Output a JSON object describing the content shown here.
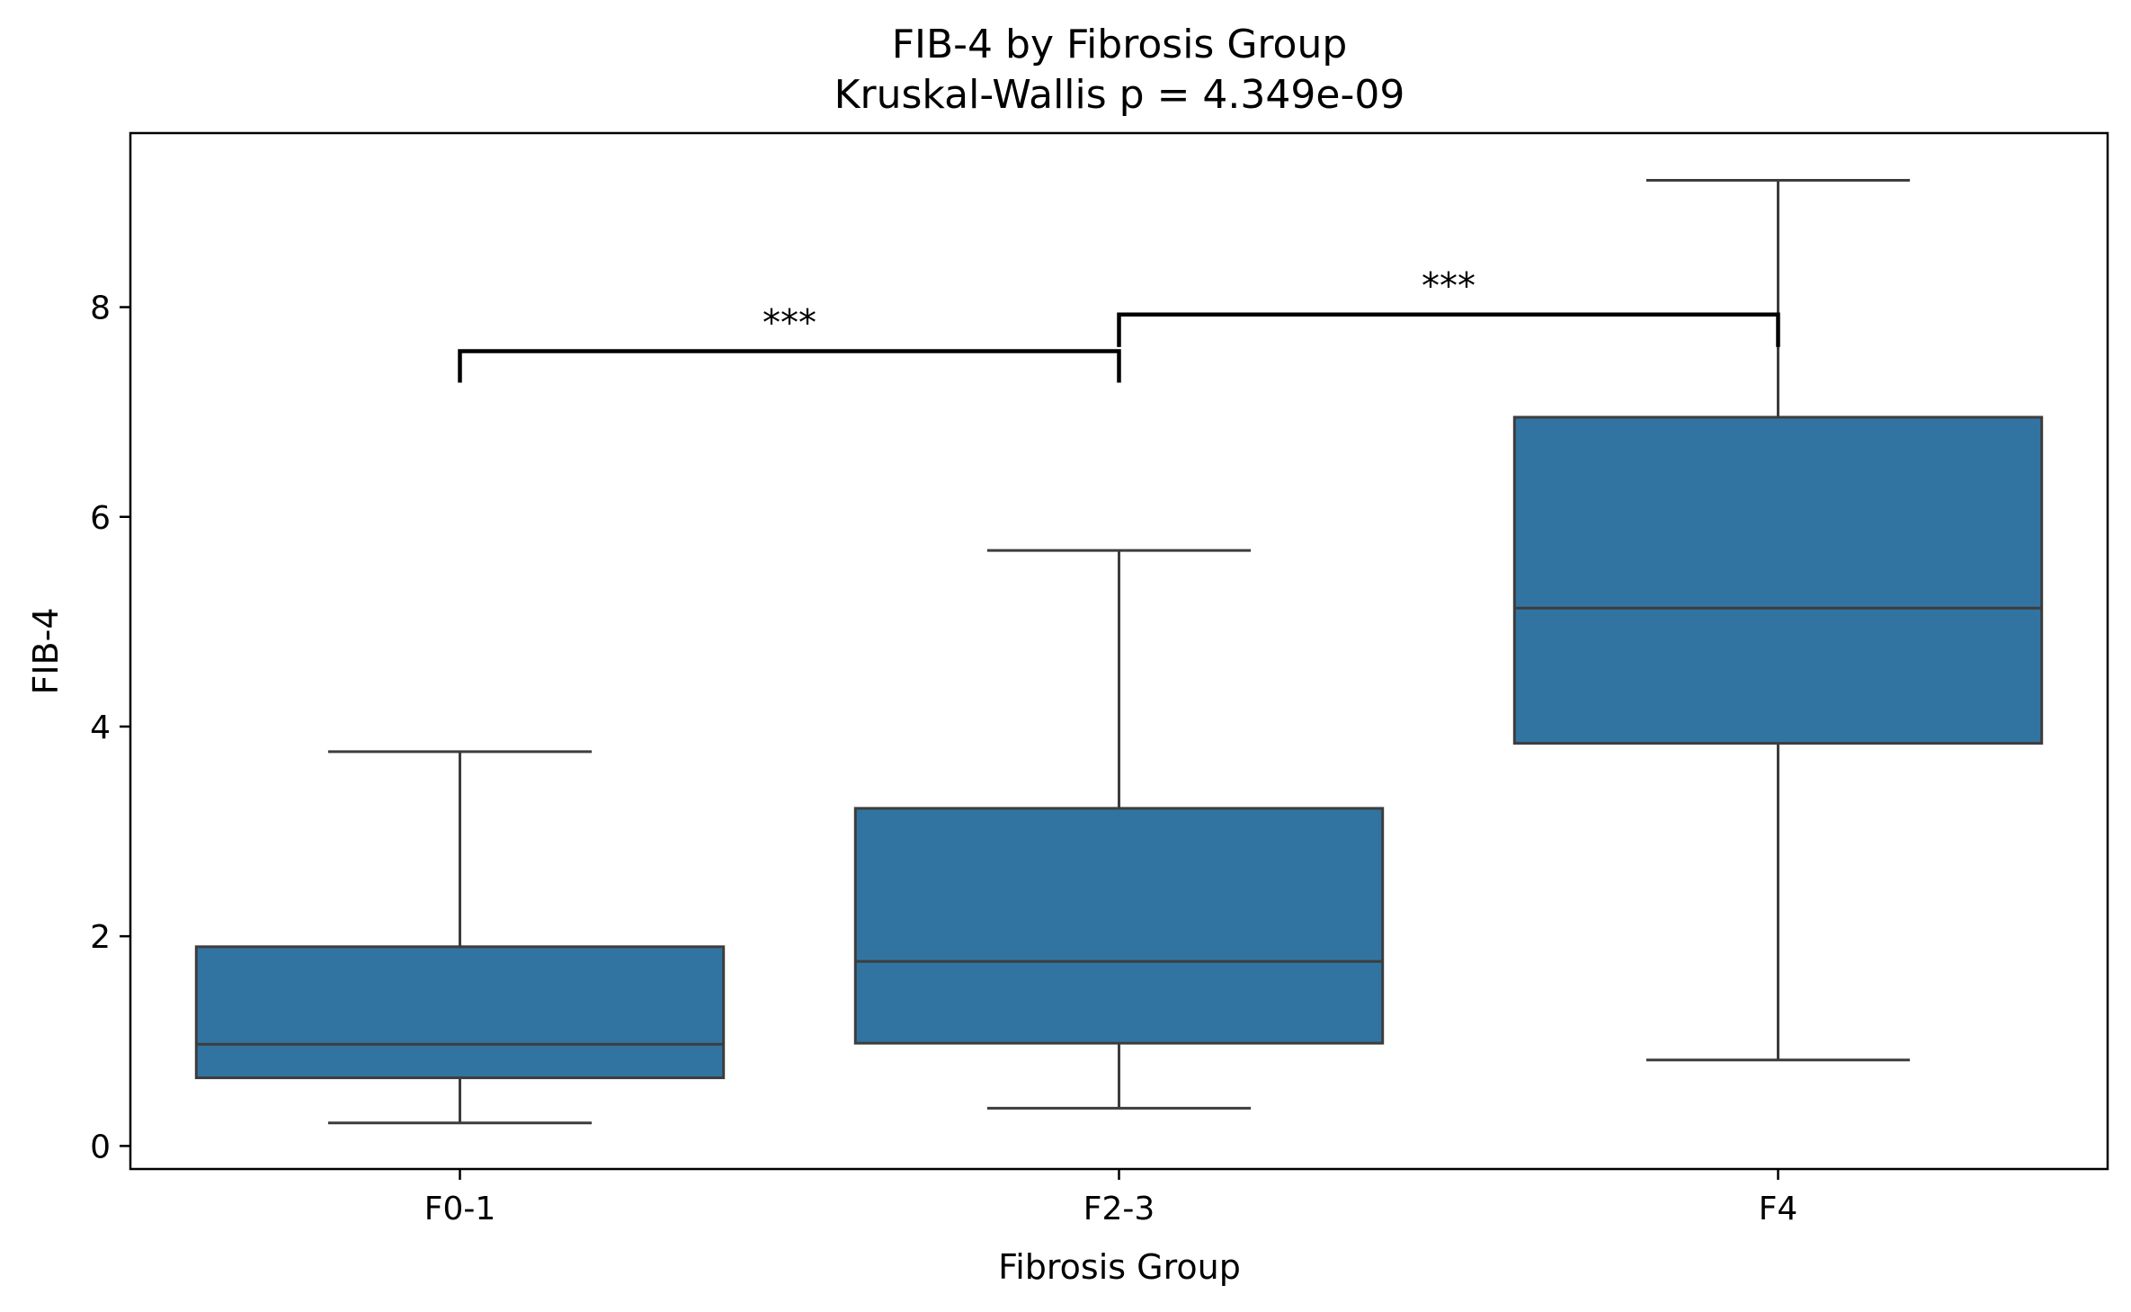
{
  "chart_data": {
    "type": "box",
    "title": "FIB-4 by Fibrosis Group",
    "subtitle": "Kruskal-Wallis p = 4.349e-09",
    "xlabel": "Fibrosis Group",
    "ylabel": "FIB-4",
    "categories": [
      "F0-1",
      "F2-3",
      "F4"
    ],
    "boxes": [
      {
        "category": "F0-1",
        "whisker_low": 0.22,
        "q1": 0.65,
        "median": 0.97,
        "q3": 1.9,
        "whisker_high": 3.76
      },
      {
        "category": "F2-3",
        "whisker_low": 0.36,
        "q1": 0.98,
        "median": 1.76,
        "q3": 3.22,
        "whisker_high": 5.68
      },
      {
        "category": "F4",
        "whisker_low": 0.82,
        "q1": 3.84,
        "median": 5.13,
        "q3": 6.95,
        "whisker_high": 9.21
      }
    ],
    "yticks": [
      0,
      2,
      4,
      6,
      8
    ],
    "ytick_labels": [
      "0",
      "2",
      "4",
      "6",
      "8"
    ],
    "ylim": [
      -0.22,
      9.66
    ],
    "grid": false,
    "box_color": "#3274a1",
    "line_color": "#3d3d3d",
    "annotations": [
      {
        "from": "F0-1",
        "to": "F2-3",
        "bar_y": 7.58,
        "tick_low": 7.28,
        "label": "***"
      },
      {
        "from": "F2-3",
        "to": "F4",
        "bar_y": 7.93,
        "tick_low": 7.62,
        "label": "***"
      }
    ]
  }
}
